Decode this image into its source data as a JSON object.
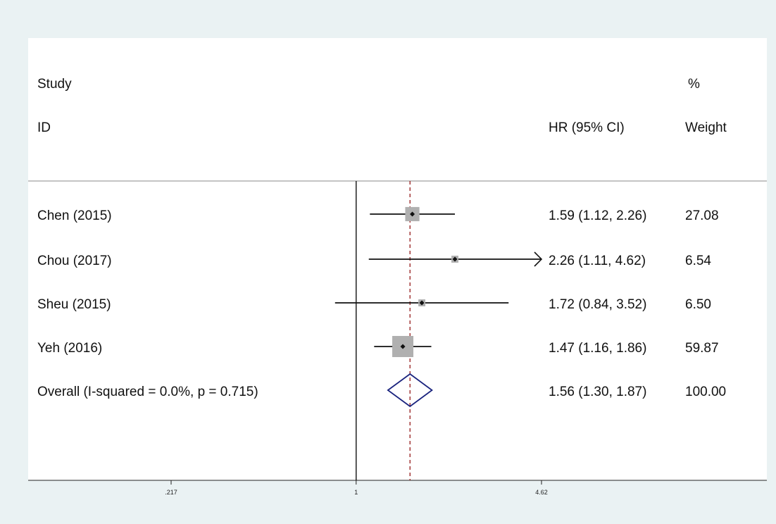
{
  "header": {
    "study_label": "Study",
    "id_label": "ID",
    "effect_label": "HR (95% CI)",
    "pct_label": "%",
    "weight_label": "Weight"
  },
  "chart_data": {
    "type": "forest",
    "scale": "log",
    "xlim": [
      0.217,
      4.62
    ],
    "null_line": 1,
    "pooled_line": 1.56,
    "x_ticks": [
      {
        "value": 0.217,
        "label": ".217"
      },
      {
        "value": 1,
        "label": "1"
      },
      {
        "value": 4.62,
        "label": "4.62"
      }
    ],
    "studies": [
      {
        "id": "Chen (2015)",
        "hr": 1.59,
        "lo": 1.12,
        "hi": 2.26,
        "label": "1.59 (1.12, 2.26)",
        "weight": 27.08,
        "weight_label": "27.08"
      },
      {
        "id": "Chou (2017)",
        "hr": 2.26,
        "lo": 1.11,
        "hi": 4.62,
        "label": "2.26 (1.11, 4.62)",
        "weight": 6.54,
        "weight_label": "6.54"
      },
      {
        "id": "Sheu (2015)",
        "hr": 1.72,
        "lo": 0.84,
        "hi": 3.52,
        "label": "1.72 (0.84, 3.52)",
        "weight": 6.5,
        "weight_label": "6.50"
      },
      {
        "id": "Yeh (2016)",
        "hr": 1.47,
        "lo": 1.16,
        "hi": 1.86,
        "label": "1.47 (1.16, 1.86)",
        "weight": 59.87,
        "weight_label": "59.87"
      }
    ],
    "overall": {
      "id": "Overall  (I-squared = 0.0%, p = 0.715)",
      "hr": 1.56,
      "lo": 1.3,
      "hi": 1.87,
      "label": "1.56 (1.30, 1.87)",
      "weight_label": "100.00"
    },
    "colors": {
      "marker": "#111111",
      "box": "#b0b0b0",
      "diamond": "#1a237e",
      "pooled_line": "#9c2a2a",
      "axis": "#222222",
      "separator": "#a0a0a0"
    }
  }
}
